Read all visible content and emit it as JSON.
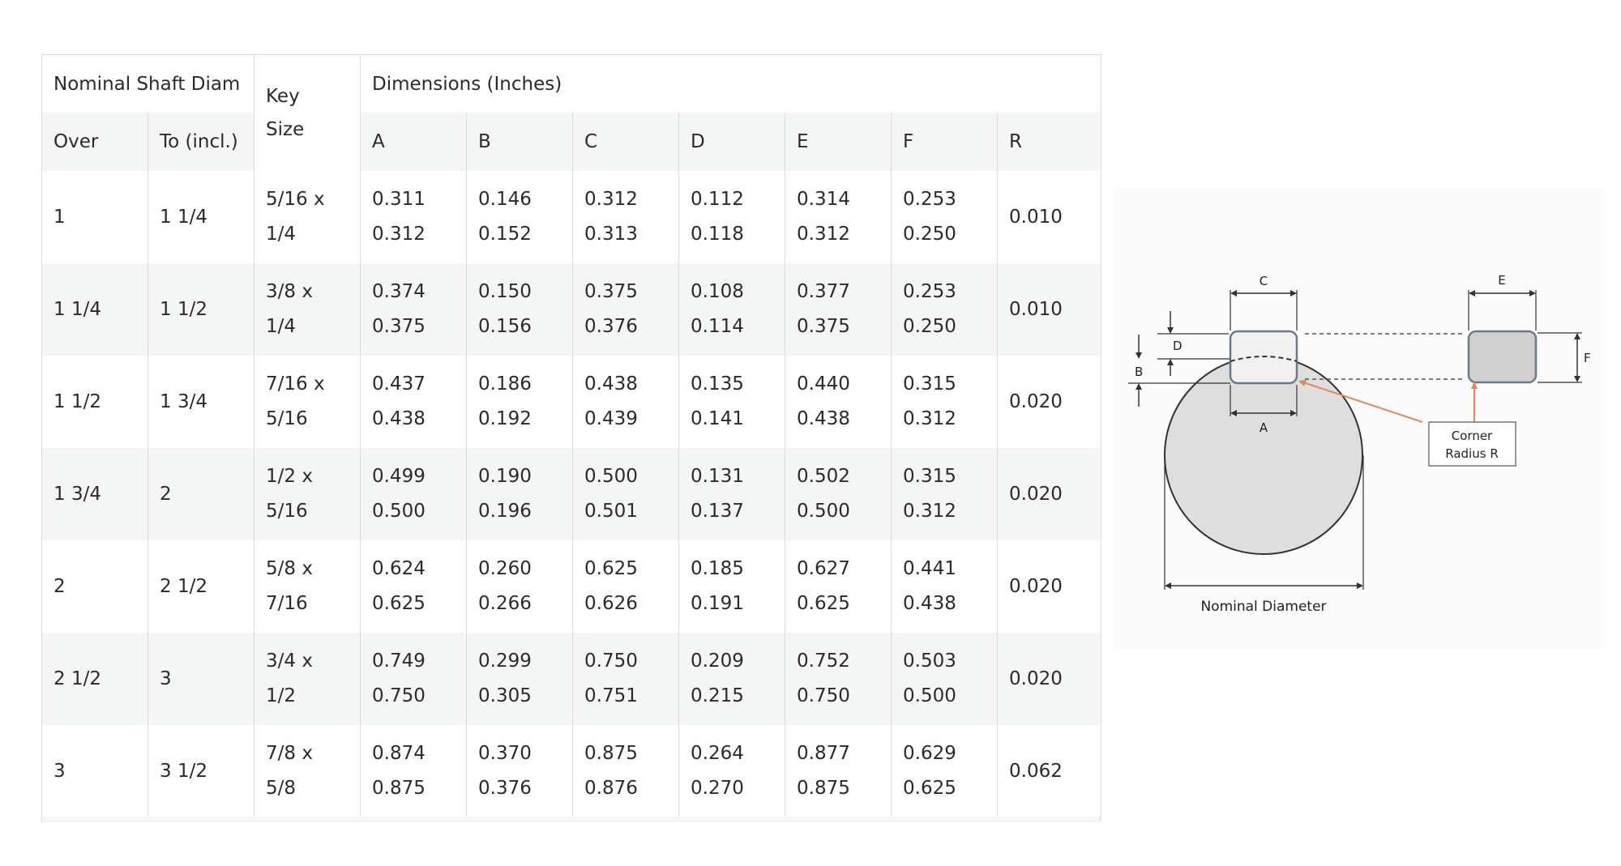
{
  "table": {
    "header": {
      "nominal": "Nominal Shaft Diam",
      "key_size_line1": "Key",
      "key_size_line2": "Size",
      "dimensions": "Dimensions (Inches)",
      "over": "Over",
      "to": "To (incl.)",
      "cols": [
        "A",
        "B",
        "C",
        "D",
        "E",
        "F",
        "R"
      ]
    },
    "rows": [
      {
        "over": "1",
        "to": "1 1/4",
        "key": [
          "5/16 x",
          "1/4"
        ],
        "A": [
          "0.311",
          "0.312"
        ],
        "B": [
          "0.146",
          "0.152"
        ],
        "C": [
          "0.312",
          "0.313"
        ],
        "D": [
          "0.112",
          "0.118"
        ],
        "E": [
          "0.314",
          "0.312"
        ],
        "F": [
          "0.253",
          "0.250"
        ],
        "R": "0.010"
      },
      {
        "over": "1 1/4",
        "to": "1 1/2",
        "key": [
          "3/8 x",
          "1/4"
        ],
        "A": [
          "0.374",
          "0.375"
        ],
        "B": [
          "0.150",
          "0.156"
        ],
        "C": [
          "0.375",
          "0.376"
        ],
        "D": [
          "0.108",
          "0.114"
        ],
        "E": [
          "0.377",
          "0.375"
        ],
        "F": [
          "0.253",
          "0.250"
        ],
        "R": "0.010"
      },
      {
        "over": "1 1/2",
        "to": "1 3/4",
        "key": [
          "7/16 x",
          "5/16"
        ],
        "A": [
          "0.437",
          "0.438"
        ],
        "B": [
          "0.186",
          "0.192"
        ],
        "C": [
          "0.438",
          "0.439"
        ],
        "D": [
          "0.135",
          "0.141"
        ],
        "E": [
          "0.440",
          "0.438"
        ],
        "F": [
          "0.315",
          "0.312"
        ],
        "R": "0.020"
      },
      {
        "over": "1 3/4",
        "to": "2",
        "key": [
          "1/2 x",
          "5/16"
        ],
        "A": [
          "0.499",
          "0.500"
        ],
        "B": [
          "0.190",
          "0.196"
        ],
        "C": [
          "0.500",
          "0.501"
        ],
        "D": [
          "0.131",
          "0.137"
        ],
        "E": [
          "0.502",
          "0.500"
        ],
        "F": [
          "0.315",
          "0.312"
        ],
        "R": "0.020"
      },
      {
        "over": "2",
        "to": "2 1/2",
        "key": [
          "5/8 x",
          "7/16"
        ],
        "A": [
          "0.624",
          "0.625"
        ],
        "B": [
          "0.260",
          "0.266"
        ],
        "C": [
          "0.625",
          "0.626"
        ],
        "D": [
          "0.185",
          "0.191"
        ],
        "E": [
          "0.627",
          "0.625"
        ],
        "F": [
          "0.441",
          "0.438"
        ],
        "R": "0.020"
      },
      {
        "over": "2 1/2",
        "to": "3",
        "key": [
          "3/4 x",
          "1/2"
        ],
        "A": [
          "0.749",
          "0.750"
        ],
        "B": [
          "0.299",
          "0.305"
        ],
        "C": [
          "0.750",
          "0.751"
        ],
        "D": [
          "0.209",
          "0.215"
        ],
        "E": [
          "0.752",
          "0.750"
        ],
        "F": [
          "0.503",
          "0.500"
        ],
        "R": "0.020"
      },
      {
        "over": "3",
        "to": "3 1/2",
        "key": [
          "7/8 x",
          "5/8"
        ],
        "A": [
          "0.874",
          "0.875"
        ],
        "B": [
          "0.370",
          "0.376"
        ],
        "C": [
          "0.875",
          "0.876"
        ],
        "D": [
          "0.264",
          "0.270"
        ],
        "E": [
          "0.877",
          "0.875"
        ],
        "F": [
          "0.629",
          "0.625"
        ],
        "R": "0.062"
      }
    ]
  },
  "diagram": {
    "label_c": "C",
    "label_e": "E",
    "label_d": "D",
    "label_b": "B",
    "label_a": "A",
    "label_f": "F",
    "corner_line1": "Corner",
    "corner_line2": "Radius R",
    "nominal_diameter": "Nominal Diameter",
    "accent_color": "#e8865a"
  }
}
